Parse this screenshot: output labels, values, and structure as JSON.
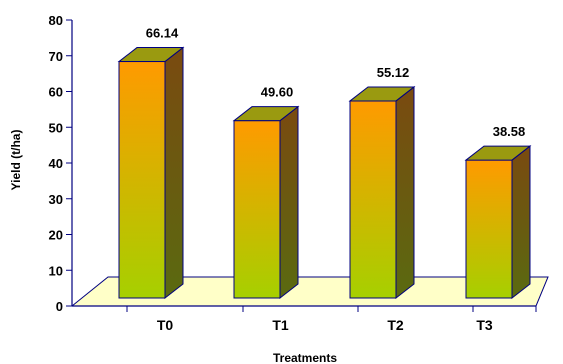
{
  "chart_data": {
    "type": "bar",
    "title": "",
    "xlabel": "Treatments",
    "ylabel": "Yield (t/ha)",
    "categories": [
      "T0",
      "T1",
      "T2",
      "T3"
    ],
    "values": [
      66.14,
      49.6,
      55.12,
      38.58
    ],
    "data_labels": [
      "66.14",
      "49.60",
      "55.12",
      "38.58"
    ],
    "ylim": [
      0,
      80
    ],
    "yticks": [
      0,
      10,
      20,
      30,
      40,
      50,
      60,
      70,
      80
    ],
    "style": "3d-column",
    "grid": false,
    "legend": "none",
    "colors": {
      "bar_top_gradient": "#ff9a00",
      "bar_bottom_gradient": "#a6d000",
      "bar_side": "#7a4a10",
      "bar_side_bottom": "#5a6a10",
      "bar_cap": "#9a9a10",
      "floor": "#ffffc8",
      "axis": "#000080",
      "outline": "#000080"
    }
  }
}
